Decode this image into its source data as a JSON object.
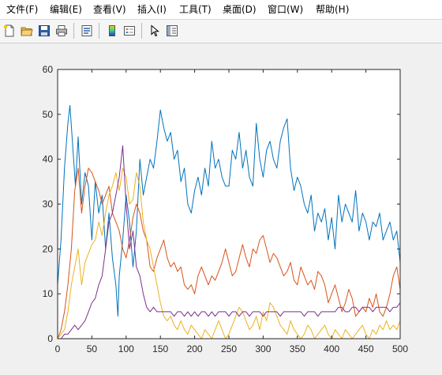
{
  "menu": {
    "items": [
      {
        "label": "文件(F)"
      },
      {
        "label": "编辑(E)"
      },
      {
        "label": "查看(V)"
      },
      {
        "label": "插入(I)"
      },
      {
        "label": "工具(T)"
      },
      {
        "label": "桌面(D)"
      },
      {
        "label": "窗口(W)"
      },
      {
        "label": "帮助(H)"
      }
    ]
  },
  "toolbar": {
    "icons": [
      "new-figure-icon",
      "open-file-icon",
      "save-icon",
      "print-icon",
      "link-plot-icon",
      "colorbar-icon",
      "legend-icon",
      "edit-plot-arrow-icon",
      "property-inspector-icon"
    ]
  },
  "chart_data": {
    "type": "line",
    "title": "",
    "xlabel": "",
    "ylabel": "",
    "xlim": [
      0,
      500
    ],
    "ylim": [
      0,
      60
    ],
    "xticks": [
      0,
      50,
      100,
      150,
      200,
      250,
      300,
      350,
      400,
      450,
      500
    ],
    "yticks": [
      0,
      10,
      20,
      30,
      40,
      50,
      60
    ],
    "grid": false,
    "legend": "none",
    "series": [
      {
        "color": "#0072BD",
        "x": [
          0,
          5,
          10,
          15,
          18,
          22,
          26,
          30,
          35,
          40,
          45,
          50,
          55,
          60,
          65,
          70,
          75,
          80,
          85,
          88,
          90,
          95,
          100,
          105,
          110,
          115,
          120,
          125,
          130,
          135,
          140,
          145,
          150,
          155,
          160,
          165,
          170,
          175,
          180,
          185,
          190,
          195,
          200,
          205,
          210,
          215,
          220,
          225,
          230,
          235,
          240,
          245,
          250,
          255,
          260,
          265,
          270,
          275,
          280,
          285,
          290,
          295,
          300,
          305,
          310,
          315,
          320,
          325,
          330,
          335,
          340,
          345,
          350,
          355,
          360,
          365,
          370,
          375,
          380,
          385,
          390,
          395,
          400,
          405,
          410,
          415,
          420,
          425,
          430,
          435,
          440,
          445,
          450,
          455,
          460,
          465,
          470,
          475,
          480,
          485,
          490,
          495,
          500
        ],
        "y": [
          12,
          22,
          38,
          48,
          52,
          43,
          34,
          45,
          30,
          37,
          34,
          22,
          35,
          28,
          32,
          20,
          28,
          18,
          12,
          5,
          14,
          22,
          32,
          26,
          16,
          24,
          40,
          32,
          36,
          40,
          38,
          44,
          51,
          47,
          44,
          46,
          40,
          42,
          35,
          38,
          30,
          28,
          33,
          36,
          32,
          38,
          34,
          44,
          38,
          40,
          36,
          34,
          34,
          42,
          40,
          46,
          38,
          42,
          36,
          34,
          48,
          40,
          36,
          42,
          44,
          40,
          38,
          44,
          47,
          49,
          38,
          33,
          36,
          34,
          30,
          28,
          32,
          24,
          28,
          26,
          29,
          22,
          27,
          20,
          32,
          26,
          30,
          28,
          26,
          33,
          24,
          28,
          26,
          22,
          26,
          25,
          28,
          22,
          24,
          26,
          22,
          24,
          17
        ]
      },
      {
        "color": "#D95319",
        "x": [
          0,
          5,
          10,
          15,
          20,
          25,
          30,
          35,
          40,
          45,
          50,
          55,
          60,
          65,
          70,
          75,
          80,
          85,
          90,
          95,
          100,
          105,
          110,
          115,
          120,
          125,
          130,
          135,
          140,
          145,
          150,
          155,
          160,
          165,
          170,
          175,
          180,
          185,
          190,
          195,
          200,
          205,
          210,
          215,
          220,
          225,
          230,
          235,
          240,
          245,
          250,
          255,
          260,
          265,
          270,
          275,
          280,
          285,
          290,
          295,
          300,
          305,
          310,
          315,
          320,
          325,
          330,
          335,
          340,
          345,
          350,
          355,
          360,
          365,
          370,
          375,
          380,
          385,
          390,
          395,
          400,
          405,
          410,
          415,
          420,
          425,
          430,
          435,
          440,
          445,
          450,
          455,
          460,
          465,
          470,
          475,
          480,
          485,
          490,
          495,
          500
        ],
        "y": [
          0,
          2,
          6,
          12,
          20,
          33,
          38,
          28,
          34,
          38,
          37,
          35,
          33,
          30,
          32,
          34,
          28,
          26,
          24,
          20,
          18,
          22,
          27,
          30,
          28,
          24,
          22,
          16,
          15,
          18,
          20,
          22,
          18,
          16,
          17,
          15,
          16,
          12,
          11,
          12,
          10,
          14,
          16,
          14,
          12,
          14,
          13,
          15,
          17,
          20,
          17,
          14,
          15,
          18,
          21,
          18,
          16,
          20,
          19,
          22,
          23,
          20,
          17,
          19,
          18,
          16,
          14,
          15,
          17,
          13,
          12,
          16,
          14,
          12,
          13,
          11,
          15,
          14,
          12,
          8,
          10,
          12,
          9,
          6,
          8,
          11,
          9,
          5,
          6,
          7,
          6,
          9,
          7,
          10,
          6,
          5,
          7,
          10,
          14,
          16,
          11
        ]
      },
      {
        "color": "#EDB120",
        "x": [
          0,
          5,
          10,
          15,
          20,
          25,
          30,
          35,
          40,
          45,
          50,
          55,
          60,
          65,
          70,
          75,
          80,
          85,
          90,
          95,
          100,
          105,
          110,
          115,
          120,
          125,
          130,
          135,
          140,
          145,
          150,
          155,
          160,
          165,
          170,
          175,
          180,
          185,
          190,
          195,
          200,
          205,
          210,
          215,
          220,
          225,
          230,
          235,
          240,
          245,
          250,
          255,
          260,
          265,
          270,
          275,
          280,
          285,
          290,
          295,
          300,
          305,
          310,
          315,
          320,
          325,
          330,
          335,
          340,
          345,
          350,
          355,
          360,
          365,
          370,
          375,
          380,
          385,
          390,
          395,
          400,
          405,
          410,
          415,
          420,
          425,
          430,
          435,
          440,
          445,
          450,
          455,
          460,
          465,
          470,
          475,
          480,
          485,
          490,
          495,
          500
        ],
        "y": [
          0,
          1,
          2,
          6,
          12,
          16,
          20,
          12,
          17,
          19,
          21,
          22,
          26,
          23,
          28,
          32,
          34,
          37,
          33,
          38,
          36,
          30,
          31,
          37,
          34,
          26,
          22,
          20,
          16,
          12,
          8,
          5,
          4,
          5,
          3,
          2,
          4,
          2,
          1,
          3,
          2,
          1,
          0,
          2,
          1,
          0,
          2,
          4,
          2,
          0,
          1,
          3,
          5,
          7,
          6,
          4,
          2,
          3,
          5,
          2,
          6,
          4,
          8,
          7,
          5,
          3,
          2,
          1,
          4,
          2,
          1,
          0,
          1,
          3,
          2,
          0,
          1,
          2,
          3,
          1,
          0,
          2,
          1,
          0,
          2,
          1,
          0,
          1,
          2,
          3,
          1,
          0,
          2,
          1,
          3,
          2,
          4,
          2,
          3,
          2,
          4
        ]
      },
      {
        "color": "#7E2F8E",
        "x": [
          0,
          5,
          10,
          15,
          20,
          25,
          30,
          35,
          40,
          45,
          50,
          55,
          60,
          65,
          70,
          75,
          80,
          85,
          90,
          95,
          100,
          105,
          110,
          115,
          120,
          125,
          130,
          135,
          140,
          145,
          150,
          155,
          160,
          165,
          170,
          175,
          180,
          185,
          190,
          195,
          200,
          205,
          210,
          215,
          220,
          225,
          230,
          235,
          240,
          245,
          250,
          255,
          260,
          265,
          270,
          275,
          280,
          285,
          290,
          295,
          300,
          305,
          310,
          315,
          320,
          325,
          330,
          335,
          340,
          345,
          350,
          355,
          360,
          365,
          370,
          375,
          380,
          385,
          390,
          395,
          400,
          405,
          410,
          415,
          420,
          425,
          430,
          435,
          440,
          445,
          450,
          455,
          460,
          465,
          470,
          475,
          480,
          485,
          490,
          495,
          500
        ],
        "y": [
          0,
          0,
          1,
          1,
          2,
          3,
          2,
          3,
          4,
          6,
          8,
          9,
          12,
          14,
          20,
          26,
          28,
          32,
          36,
          43,
          30,
          20,
          24,
          16,
          14,
          10,
          7,
          6,
          7,
          6,
          6,
          6,
          6,
          6,
          5,
          6,
          6,
          5,
          6,
          5,
          6,
          5,
          6,
          6,
          5,
          6,
          5,
          6,
          6,
          6,
          5,
          6,
          6,
          5,
          6,
          6,
          5,
          6,
          6,
          6,
          5,
          6,
          6,
          6,
          6,
          5,
          6,
          6,
          6,
          6,
          6,
          6,
          5,
          6,
          6,
          6,
          5,
          6,
          6,
          6,
          6,
          6,
          7,
          7,
          6,
          6,
          7,
          7,
          6,
          7,
          7,
          7,
          6,
          7,
          7,
          7,
          7,
          6,
          7,
          7,
          8
        ]
      }
    ]
  }
}
